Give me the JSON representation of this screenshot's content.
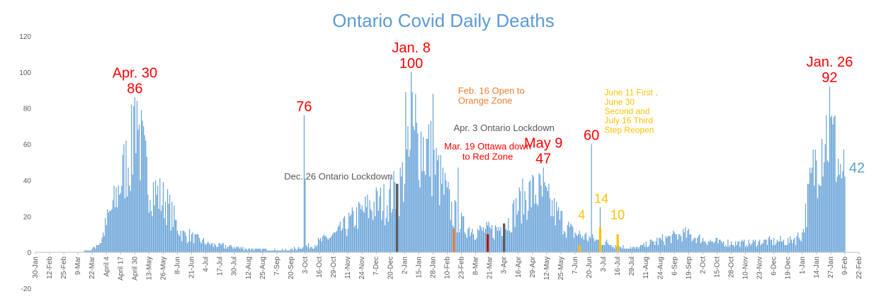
{
  "chart_data": {
    "type": "bar",
    "title": "Ontario Covid Daily Deaths",
    "ylim": [
      -20,
      120
    ],
    "yticks": [
      -20,
      0,
      20,
      40,
      60,
      80,
      100,
      120
    ],
    "xlabel": "",
    "ylabel": "",
    "grid": false,
    "legend": "none",
    "x_start": "2020-01-30",
    "x_end": "2022-02-22",
    "x_tick_labels": [
      "30-Jan",
      "12-Feb",
      "25-Feb",
      "9-Mar",
      "22-Mar",
      "April 4",
      "April 17",
      "April 30",
      "13-May",
      "26-May",
      "8-Jun",
      "21-Jun",
      "4-Jul",
      "17-Jul",
      "30-Jul",
      "12-Aug",
      "25-Aug",
      "7-Sep",
      "20-Sep",
      "3-Oct",
      "16-Oct",
      "29-Oct",
      "11-Nov",
      "24-Nov",
      "7-Dec",
      "20-Dec",
      "2-Jan",
      "15-Jan",
      "28-Jan",
      "10-Feb",
      "23-Feb",
      "8-Mar",
      "21-Mar",
      "3-Apr",
      "16-Apr",
      "29-Apr",
      "12-May",
      "25-May",
      "7-Jun",
      "20-Jun",
      "3-Jul",
      "16-Jul",
      "29-Jul",
      "11-Aug",
      "24-Aug",
      "6-Sep",
      "19-Sep",
      "2-Oct",
      "15-Oct",
      "28-Oct",
      "10-Nov",
      "23-Nov",
      "6-Dec",
      "19-Dec",
      "1-Jan",
      "14-Jan",
      "27-Jan",
      "9-Feb",
      "22-Feb"
    ],
    "bar_color": "#5b9bd5",
    "series_keypoints": [
      [
        "2020-03-10",
        0
      ],
      [
        "2020-03-20",
        1
      ],
      [
        "2020-03-30",
        6
      ],
      [
        "2020-04-05",
        18
      ],
      [
        "2020-04-12",
        28
      ],
      [
        "2020-04-20",
        45
      ],
      [
        "2020-04-28",
        58
      ],
      [
        "2020-04-30",
        86
      ],
      [
        "2020-05-05",
        60
      ],
      [
        "2020-05-12",
        40
      ],
      [
        "2020-05-20",
        32
      ],
      [
        "2020-05-28",
        28
      ],
      [
        "2020-06-05",
        18
      ],
      [
        "2020-06-12",
        10
      ],
      [
        "2020-06-20",
        9
      ],
      [
        "2020-06-30",
        6
      ],
      [
        "2020-07-10",
        4
      ],
      [
        "2020-07-25",
        3
      ],
      [
        "2020-08-10",
        2
      ],
      [
        "2020-09-10",
        1
      ],
      [
        "2020-09-25",
        2
      ],
      [
        "2020-10-01",
        3
      ],
      [
        "2020-10-10",
        4
      ],
      [
        "2020-10-20",
        7
      ],
      [
        "2020-11-01",
        10
      ],
      [
        "2020-11-15",
        18
      ],
      [
        "2020-12-01",
        25
      ],
      [
        "2020-12-15",
        28
      ],
      [
        "2020-12-28",
        35
      ],
      [
        "2021-01-05",
        50
      ],
      [
        "2021-01-15",
        62
      ],
      [
        "2021-01-25",
        55
      ],
      [
        "2021-02-05",
        38
      ],
      [
        "2021-02-15",
        22
      ],
      [
        "2021-02-25",
        14
      ],
      [
        "2021-03-10",
        12
      ],
      [
        "2021-03-25",
        12
      ],
      [
        "2021-04-05",
        15
      ],
      [
        "2021-04-15",
        25
      ],
      [
        "2021-04-25",
        32
      ],
      [
        "2021-05-05",
        33
      ],
      [
        "2021-05-15",
        26
      ],
      [
        "2021-05-25",
        18
      ],
      [
        "2021-06-05",
        11
      ],
      [
        "2021-06-20",
        8
      ],
      [
        "2021-07-05",
        5
      ],
      [
        "2021-07-20",
        3
      ],
      [
        "2021-08-01",
        2
      ],
      [
        "2021-08-15",
        5
      ],
      [
        "2021-09-01",
        8
      ],
      [
        "2021-09-15",
        10
      ],
      [
        "2021-10-01",
        7
      ],
      [
        "2021-10-20",
        5
      ],
      [
        "2021-11-10",
        5
      ],
      [
        "2021-12-01",
        6
      ],
      [
        "2021-12-20",
        6
      ],
      [
        "2022-01-01",
        10
      ],
      [
        "2022-01-08",
        35
      ],
      [
        "2022-01-15",
        55
      ],
      [
        "2022-01-22",
        68
      ],
      [
        "2022-01-30",
        60
      ],
      [
        "2022-02-05",
        45
      ],
      [
        "2022-02-09",
        42
      ]
    ],
    "spikes": [
      [
        "2020-04-30",
        86
      ],
      [
        "2020-05-02",
        84
      ],
      [
        "2020-10-02",
        76
      ],
      [
        "2020-10-03",
        41
      ],
      [
        "2021-01-08",
        100
      ],
      [
        "2021-01-09",
        89
      ],
      [
        "2021-01-12",
        88
      ],
      [
        "2021-01-03",
        89
      ],
      [
        "2021-01-28",
        88
      ],
      [
        "2021-02-20",
        47
      ],
      [
        "2021-05-09",
        47
      ],
      [
        "2021-06-22",
        60
      ],
      [
        "2021-06-30",
        25
      ],
      [
        "2022-01-26",
        92
      ],
      [
        "2022-01-30",
        75
      ],
      [
        "2022-02-09",
        42
      ]
    ],
    "event_bars": [
      {
        "date": "2020-12-26",
        "value": 38,
        "color": "#595959"
      },
      {
        "date": "2021-02-16",
        "value": 13,
        "color": "#ed7d31"
      },
      {
        "date": "2021-03-19",
        "value": 10,
        "color": "#c00000"
      },
      {
        "date": "2021-04-03",
        "value": 16,
        "color": "#595959"
      },
      {
        "date": "2021-06-11",
        "value": 4,
        "color": "#ffc000"
      },
      {
        "date": "2021-06-30",
        "value": 14,
        "color": "#ffc000"
      },
      {
        "date": "2021-07-16",
        "value": 10,
        "color": "#ffc000"
      }
    ],
    "annotations": [
      {
        "lines": [
          "Apr. 30",
          "86"
        ],
        "date": "2020-04-30",
        "value": 86,
        "color": "#ff0000",
        "size": 20
      },
      {
        "lines": [
          "76"
        ],
        "date": "2020-10-02",
        "value": 76,
        "color": "#ff0000",
        "size": 20
      },
      {
        "lines": [
          "Jan. 8",
          "100"
        ],
        "date": "2021-01-08",
        "value": 100,
        "color": "#ff0000",
        "size": 20
      },
      {
        "lines": [
          "Dec. 26 Ontario Lockdown"
        ],
        "date": "2020-12-26",
        "value": 38,
        "color": "#595959",
        "size": 13,
        "anchor": "end"
      },
      {
        "lines": [
          "Feb. 16 Open to",
          "Orange Zone"
        ],
        "date": "2021-02-16",
        "value": 80,
        "color": "#ed7d31",
        "size": 13,
        "anchor": "start"
      },
      {
        "lines": [
          "Apr. 3 Ontario Lockdown"
        ],
        "date": "2021-04-03",
        "value": 65,
        "color": "#595959",
        "size": 13,
        "anchor": "middle"
      },
      {
        "lines": [
          "Mar. 19 Ottawa down",
          "to Red Zone"
        ],
        "date": "2021-03-19",
        "value": 49,
        "color": "#ff0000",
        "size": 13,
        "anchor": "middle"
      },
      {
        "lines": [
          "May 9",
          "47"
        ],
        "date": "2021-05-09",
        "value": 47,
        "color": "#ff0000",
        "size": 20
      },
      {
        "lines": [
          "60"
        ],
        "date": "2021-06-22",
        "value": 60,
        "color": "#ff0000",
        "size": 20
      },
      {
        "lines": [
          "June 11 First ,",
          "June 30",
          "Second and",
          "July 16 Third",
          "Step Reopen"
        ],
        "date": "2021-06-30",
        "value": 64,
        "color": "#ffc000",
        "size": 12,
        "anchor": "start"
      },
      {
        "lines": [
          "4"
        ],
        "date": "2021-06-13",
        "value": 16,
        "color": "#ffc000",
        "size": 18
      },
      {
        "lines": [
          "14"
        ],
        "date": "2021-07-01",
        "value": 25,
        "color": "#ffc000",
        "size": 18
      },
      {
        "lines": [
          "10"
        ],
        "date": "2021-07-16",
        "value": 16,
        "color": "#ffc000",
        "size": 18
      },
      {
        "lines": [
          "Jan. 26",
          "92"
        ],
        "date": "2022-01-26",
        "value": 92,
        "color": "#ff0000",
        "size": 20
      },
      {
        "lines": [
          "42"
        ],
        "date": "2022-02-09",
        "value": 42,
        "color": "#5b9bd5",
        "size": 20,
        "anchor": "start"
      }
    ]
  }
}
